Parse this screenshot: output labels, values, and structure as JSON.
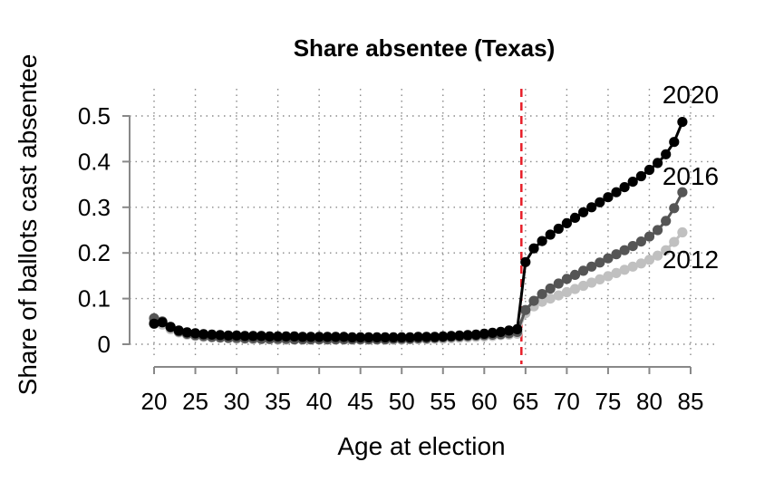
{
  "chart_data": {
    "type": "line",
    "title": "Share absentee (Texas)",
    "xlabel": "Age at election",
    "ylabel": "Share of ballots cast absentee",
    "xlim": [
      20,
      85
    ],
    "ylim": [
      0,
      0.5
    ],
    "x_ticks": [
      "20",
      "25",
      "30",
      "35",
      "40",
      "45",
      "50",
      "55",
      "60",
      "65",
      "70",
      "75",
      "80",
      "85"
    ],
    "y_ticks": [
      "0",
      "0.1",
      "0.2",
      "0.3",
      "0.4",
      "0.5"
    ],
    "grid": true,
    "grid_style": "dotted",
    "reference_line": {
      "x": 64.5,
      "color": "#e8202a",
      "style": "dashed"
    },
    "series": [
      {
        "name": "2012",
        "color": "#c0c0c0",
        "x": [
          20,
          21,
          22,
          23,
          24,
          25,
          26,
          27,
          28,
          29,
          30,
          31,
          32,
          33,
          34,
          35,
          36,
          37,
          38,
          39,
          40,
          41,
          42,
          43,
          44,
          45,
          46,
          47,
          48,
          49,
          50,
          51,
          52,
          53,
          54,
          55,
          56,
          57,
          58,
          59,
          60,
          61,
          62,
          63,
          64,
          65,
          66,
          67,
          68,
          69,
          70,
          71,
          72,
          73,
          74,
          75,
          76,
          77,
          78,
          79,
          80,
          81,
          82,
          83,
          84
        ],
        "y": [
          0.05,
          0.043,
          0.033,
          0.026,
          0.021,
          0.018,
          0.016,
          0.015,
          0.014,
          0.013,
          0.012,
          0.012,
          0.011,
          0.011,
          0.011,
          0.01,
          0.01,
          0.01,
          0.01,
          0.01,
          0.01,
          0.01,
          0.01,
          0.01,
          0.01,
          0.01,
          0.01,
          0.01,
          0.01,
          0.01,
          0.01,
          0.011,
          0.011,
          0.011,
          0.012,
          0.012,
          0.013,
          0.014,
          0.015,
          0.016,
          0.017,
          0.018,
          0.02,
          0.021,
          0.023,
          0.068,
          0.083,
          0.093,
          0.1,
          0.107,
          0.114,
          0.121,
          0.128,
          0.135,
          0.142,
          0.149,
          0.156,
          0.163,
          0.17,
          0.177,
          0.185,
          0.194,
          0.206,
          0.224,
          0.245
        ]
      },
      {
        "name": "2016",
        "color": "#555555",
        "x": [
          20,
          21,
          22,
          23,
          24,
          25,
          26,
          27,
          28,
          29,
          30,
          31,
          32,
          33,
          34,
          35,
          36,
          37,
          38,
          39,
          40,
          41,
          42,
          43,
          44,
          45,
          46,
          47,
          48,
          49,
          50,
          51,
          52,
          53,
          54,
          55,
          56,
          57,
          58,
          59,
          60,
          61,
          62,
          63,
          64,
          65,
          66,
          67,
          68,
          69,
          70,
          71,
          72,
          73,
          74,
          75,
          76,
          77,
          78,
          79,
          80,
          81,
          82,
          83,
          84
        ],
        "y": [
          0.057,
          0.05,
          0.037,
          0.028,
          0.023,
          0.02,
          0.018,
          0.016,
          0.015,
          0.014,
          0.014,
          0.013,
          0.013,
          0.012,
          0.012,
          0.012,
          0.012,
          0.011,
          0.011,
          0.011,
          0.011,
          0.011,
          0.011,
          0.011,
          0.011,
          0.011,
          0.011,
          0.011,
          0.011,
          0.012,
          0.012,
          0.012,
          0.013,
          0.013,
          0.014,
          0.015,
          0.016,
          0.017,
          0.018,
          0.019,
          0.02,
          0.021,
          0.022,
          0.024,
          0.027,
          0.075,
          0.095,
          0.11,
          0.122,
          0.133,
          0.143,
          0.152,
          0.161,
          0.17,
          0.179,
          0.188,
          0.197,
          0.206,
          0.215,
          0.225,
          0.236,
          0.25,
          0.27,
          0.298,
          0.333
        ]
      },
      {
        "name": "2020",
        "color": "#000000",
        "x": [
          20,
          21,
          22,
          23,
          24,
          25,
          26,
          27,
          28,
          29,
          30,
          31,
          32,
          33,
          34,
          35,
          36,
          37,
          38,
          39,
          40,
          41,
          42,
          43,
          44,
          45,
          46,
          47,
          48,
          49,
          50,
          51,
          52,
          53,
          54,
          55,
          56,
          57,
          58,
          59,
          60,
          61,
          62,
          63,
          64,
          65,
          66,
          67,
          68,
          69,
          70,
          71,
          72,
          73,
          74,
          75,
          76,
          77,
          78,
          79,
          80,
          81,
          82,
          83,
          84
        ],
        "y": [
          0.045,
          0.048,
          0.038,
          0.03,
          0.026,
          0.024,
          0.022,
          0.021,
          0.02,
          0.019,
          0.019,
          0.018,
          0.018,
          0.018,
          0.017,
          0.017,
          0.017,
          0.017,
          0.016,
          0.016,
          0.016,
          0.016,
          0.016,
          0.016,
          0.015,
          0.015,
          0.015,
          0.015,
          0.015,
          0.015,
          0.015,
          0.015,
          0.016,
          0.016,
          0.016,
          0.017,
          0.018,
          0.019,
          0.02,
          0.021,
          0.023,
          0.025,
          0.027,
          0.03,
          0.033,
          0.18,
          0.21,
          0.226,
          0.24,
          0.253,
          0.265,
          0.277,
          0.289,
          0.3,
          0.311,
          0.322,
          0.333,
          0.344,
          0.356,
          0.368,
          0.382,
          0.397,
          0.416,
          0.443,
          0.487
        ]
      }
    ]
  }
}
